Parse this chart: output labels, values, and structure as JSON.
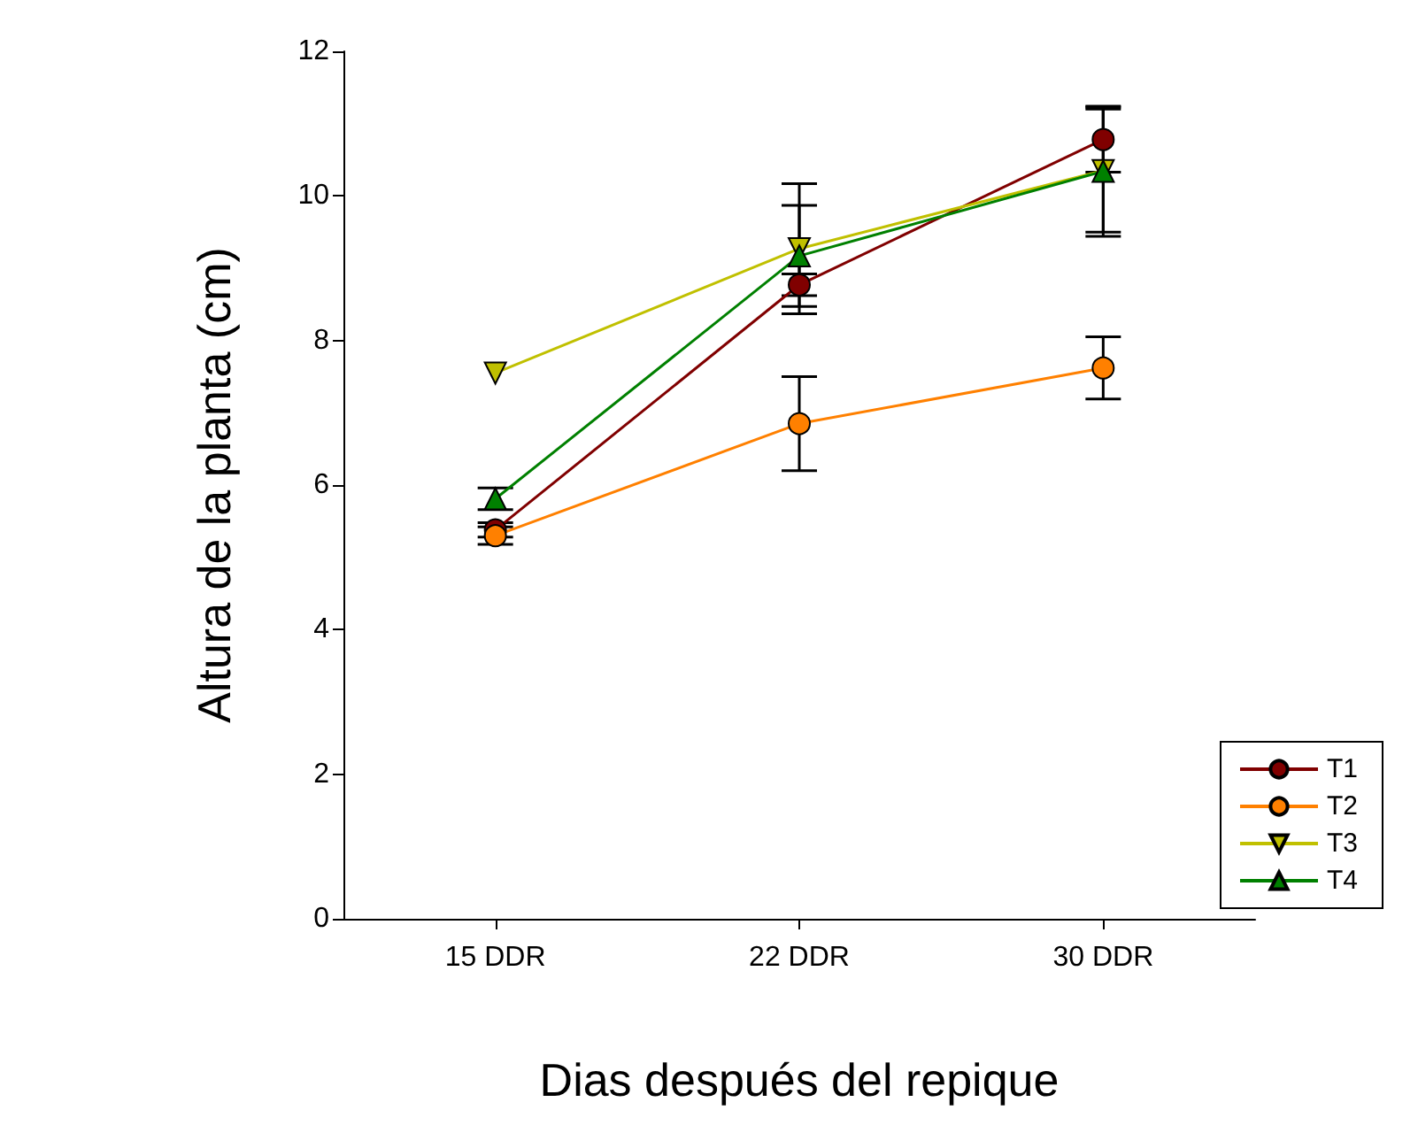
{
  "chart_data": {
    "type": "line",
    "xlabel": "Dias después del repique",
    "ylabel": "Altura de la planta (cm)",
    "categories": [
      "15 DDR",
      "22 DDR",
      "30 DDR"
    ],
    "ylim": [
      0,
      12
    ],
    "yticks": [
      0,
      2,
      4,
      6,
      8,
      10,
      12
    ],
    "grid": false,
    "legend": "bottom right",
    "series": [
      {
        "name": "T1",
        "color": "#800000",
        "marker": "circle",
        "values": [
          5.38,
          8.77,
          10.78
        ],
        "errors": [
          0.1,
          0.15,
          0.45
        ]
      },
      {
        "name": "T2",
        "color": "#ff8000",
        "marker": "circle",
        "values": [
          5.3,
          6.85,
          7.62
        ],
        "errors": [
          0.12,
          0.65,
          0.43
        ]
      },
      {
        "name": "T3",
        "color": "#c0c000",
        "marker": "triangle-down",
        "values": [
          7.55,
          9.27,
          10.35
        ],
        "errors": [
          null,
          0.9,
          0.85
        ]
      },
      {
        "name": "T4",
        "color": "#008000",
        "marker": "triangle",
        "values": [
          5.81,
          9.17,
          10.34
        ],
        "errors": [
          0.15,
          0.7,
          0.9
        ]
      }
    ]
  }
}
